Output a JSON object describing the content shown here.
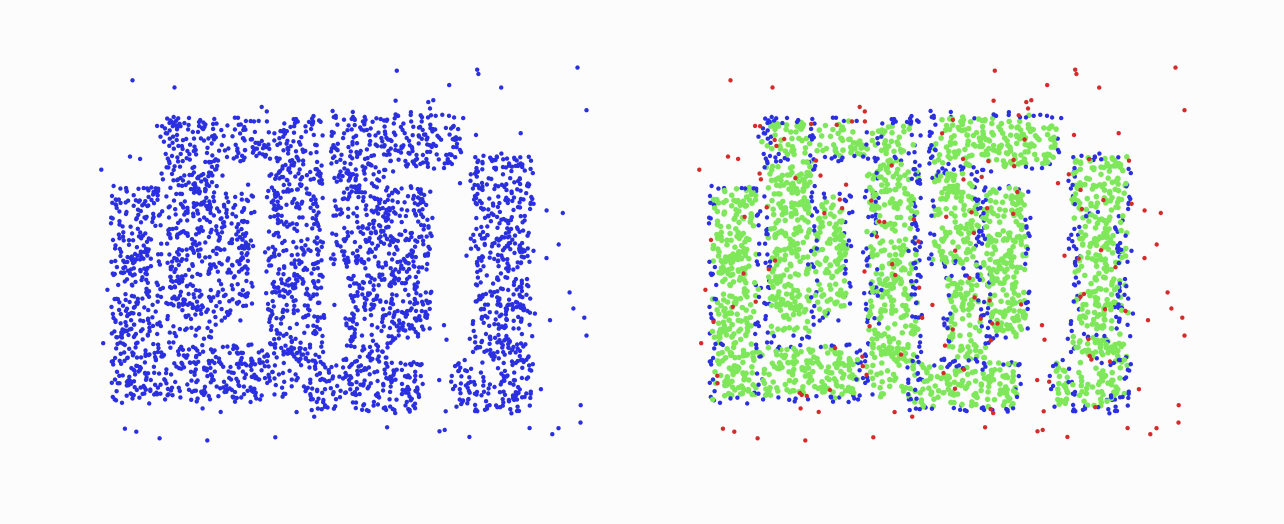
{
  "chart_data": [
    {
      "type": "scatter",
      "title": "",
      "xlabel": "",
      "ylabel": "",
      "grid": false,
      "legend": "none",
      "xlim": [
        0,
        500
      ],
      "ylim": [
        0,
        380
      ],
      "point_count": 3200,
      "series": [
        {
          "role": "all-points",
          "color": "#2a2fe0",
          "density_regions": "letter-strokes",
          "noise_fraction": 0.05
        }
      ]
    },
    {
      "type": "scatter",
      "title": "",
      "xlabel": "",
      "ylabel": "",
      "grid": false,
      "legend": "none",
      "xlim": [
        0,
        500
      ],
      "ylim": [
        0,
        380
      ],
      "point_count": 3200,
      "series": [
        {
          "role": "core",
          "color": "#7ee85a"
        },
        {
          "role": "border",
          "color": "#2a2fe0"
        },
        {
          "role": "noise",
          "color": "#d42b2b"
        }
      ]
    }
  ]
}
